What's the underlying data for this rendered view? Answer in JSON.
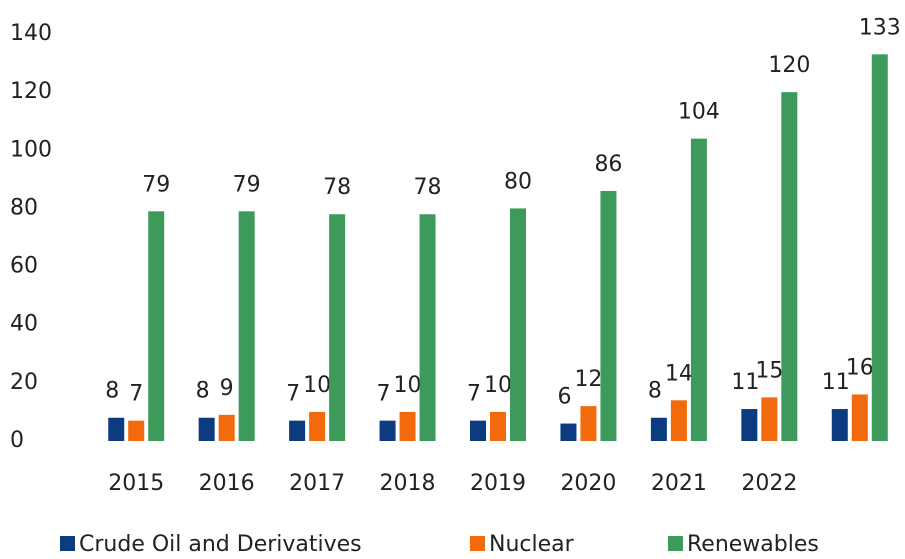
{
  "chart_data": {
    "type": "bar",
    "categories": [
      "2015",
      "2016",
      "2017",
      "2018",
      "2019",
      "2020",
      "2021",
      "2022",
      null
    ],
    "series": [
      {
        "name": "Crude Oil and Derivatives",
        "color": "#0d3b7f",
        "values": [
          8,
          8,
          7,
          7,
          7,
          6,
          8,
          11,
          11
        ]
      },
      {
        "name": "Nuclear",
        "color": "#f26a0c",
        "values": [
          7,
          9,
          10,
          10,
          10,
          12,
          14,
          15,
          16
        ]
      },
      {
        "name": "Renewables",
        "color": "#3e9a5b",
        "values": [
          79,
          79,
          78,
          78,
          80,
          86,
          104,
          120,
          133
        ]
      }
    ],
    "ylim": [
      0,
      140
    ],
    "yticks": [
      0,
      20,
      40,
      60,
      80,
      100,
      120,
      140
    ],
    "grid": false,
    "data_labels": true,
    "legend": "bottom"
  }
}
